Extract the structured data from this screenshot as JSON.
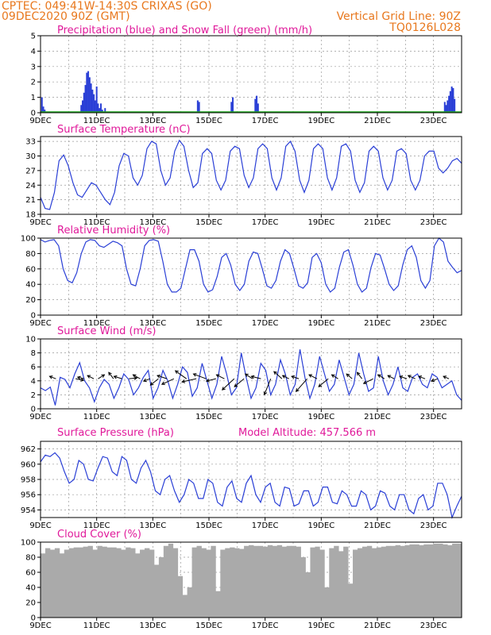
{
  "header": {
    "left1": "CPTEC:   049:41W-14:30S   CRIXAS (GO)",
    "left2": "09DEC2020 90Z (GMT)",
    "right1": "Vertical Grid Line: 90Z",
    "right2": "TQ0126L028"
  },
  "x_labels": [
    "9DEC",
    "11DEC",
    "13DEC",
    "15DEC",
    "17DEC",
    "19DEC",
    "21DEC",
    "23DEC"
  ],
  "colors": {
    "series": "#2a3fd6",
    "snow": "#22aa22",
    "cloud": "#aaaaaa",
    "header": "#e8781e",
    "title": "#e0199a"
  },
  "chart_data": [
    {
      "type": "bar",
      "title": "Precipitation (blue) and Snow Fall (green) (mm/h)",
      "ylim": [
        0,
        5
      ],
      "yticks": [
        0,
        1,
        2,
        3,
        4,
        5
      ],
      "series": [
        {
          "name": "Precipitation",
          "x": [
            0.05,
            0.1,
            0.15,
            1.45,
            1.5,
            1.55,
            1.6,
            1.65,
            1.7,
            1.75,
            1.8,
            1.85,
            1.9,
            1.95,
            2.0,
            2.05,
            2.1,
            2.15,
            2.2,
            2.3,
            5.6,
            5.65,
            6.8,
            6.85,
            7.65,
            7.7,
            7.75,
            14.4,
            14.45,
            14.5,
            14.55,
            14.6,
            14.65,
            14.7,
            14.75
          ],
          "values": [
            1.0,
            0.4,
            0.2,
            0.5,
            0.8,
            1.3,
            1.8,
            2.6,
            2.7,
            2.3,
            1.9,
            1.5,
            1.2,
            0.8,
            1.7,
            0.6,
            0.3,
            0.6,
            0.2,
            0.3,
            0.8,
            0.7,
            0.7,
            1.0,
            0.9,
            1.1,
            0.6,
            0.7,
            0.5,
            0.8,
            1.1,
            1.4,
            1.7,
            1.6,
            0.9
          ]
        },
        {
          "name": "Snow Fall",
          "x": [
            0,
            15
          ],
          "values": [
            0,
            0
          ]
        }
      ]
    },
    {
      "type": "line",
      "title": "Surface Temperature (nC)",
      "ylim": [
        18,
        34
      ],
      "yticks": [
        18,
        21,
        24,
        27,
        30,
        33
      ],
      "values": [
        21.5,
        19.2,
        19.0,
        22.5,
        29.0,
        30.2,
        28.0,
        24.5,
        22.0,
        21.5,
        23.0,
        24.5,
        24.0,
        22.5,
        21.0,
        20.0,
        22.5,
        28.0,
        30.5,
        30.0,
        25.5,
        24.0,
        26.0,
        31.5,
        33.0,
        32.5,
        27.0,
        24.0,
        25.5,
        31.0,
        33.2,
        32.0,
        27.0,
        23.5,
        24.5,
        30.5,
        31.5,
        30.5,
        25.0,
        23.0,
        25.0,
        31.0,
        32.0,
        31.5,
        26.0,
        23.5,
        25.5,
        31.5,
        32.5,
        31.5,
        25.5,
        23.0,
        25.5,
        32.0,
        33.0,
        31.0,
        25.0,
        22.5,
        25.0,
        31.5,
        32.5,
        31.5,
        25.5,
        23.0,
        25.5,
        32.0,
        32.5,
        31.0,
        25.0,
        22.5,
        24.5,
        31.0,
        32.0,
        31.0,
        25.5,
        23.0,
        25.0,
        31.0,
        31.5,
        30.5,
        25.0,
        23.0,
        25.0,
        30.0,
        31.0,
        31.0,
        27.5,
        26.5,
        27.5,
        29.0,
        29.5,
        28.5
      ]
    },
    {
      "type": "line",
      "title": "Relative Humidity (%)",
      "ylim": [
        0,
        100
      ],
      "yticks": [
        0,
        20,
        40,
        60,
        80,
        100
      ],
      "values": [
        98,
        95,
        97,
        98,
        90,
        60,
        45,
        42,
        55,
        80,
        95,
        98,
        97,
        90,
        88,
        92,
        96,
        94,
        90,
        60,
        40,
        38,
        60,
        90,
        97,
        98,
        96,
        70,
        40,
        30,
        30,
        35,
        60,
        85,
        85,
        70,
        40,
        30,
        33,
        50,
        75,
        80,
        65,
        40,
        32,
        40,
        70,
        82,
        80,
        60,
        38,
        35,
        45,
        70,
        85,
        80,
        60,
        38,
        35,
        42,
        75,
        80,
        68,
        40,
        30,
        35,
        62,
        82,
        85,
        65,
        40,
        30,
        35,
        62,
        80,
        78,
        60,
        40,
        32,
        38,
        65,
        85,
        90,
        75,
        45,
        35,
        45,
        90,
        100,
        95,
        70,
        62,
        55,
        58
      ]
    },
    {
      "type": "line",
      "title": "Surface Wind (m/s)",
      "ylim": [
        0,
        10
      ],
      "yticks": [
        0,
        2,
        4,
        6,
        8,
        10
      ],
      "values": [
        3.0,
        2.6,
        3.1,
        0.5,
        4.5,
        4.2,
        3.0,
        5.0,
        6.6,
        4.0,
        3.0,
        1.0,
        3.0,
        4.2,
        3.5,
        1.5,
        3.0,
        5.0,
        4.2,
        2.0,
        3.0,
        4.5,
        5.5,
        1.5,
        3.0,
        5.5,
        4.0,
        1.5,
        3.5,
        6.0,
        5.2,
        1.8,
        3.0,
        6.5,
        4.0,
        1.5,
        3.5,
        7.5,
        5.0,
        2.0,
        3.0,
        8.0,
        4.5,
        1.5,
        3.0,
        6.5,
        5.5,
        2.0,
        3.5,
        7.0,
        5.0,
        2.0,
        3.5,
        8.5,
        4.5,
        1.5,
        3.5,
        7.5,
        5.0,
        2.5,
        3.5,
        7.0,
        4.5,
        2.0,
        3.5,
        8.0,
        5.0,
        2.5,
        3.0,
        7.5,
        4.0,
        2.0,
        3.5,
        6.0,
        3.0,
        2.5,
        4.5,
        5.0,
        3.5,
        3.0,
        5.0,
        4.5,
        3.0,
        3.5,
        4.0,
        2.0,
        1.2
      ]
    },
    {
      "type": "line",
      "title": "Surface Pressure (hPa)",
      "annotation": "Model Altitude: 457.566  m",
      "ylim": [
        953,
        963
      ],
      "yticks": [
        954,
        956,
        958,
        960,
        962
      ],
      "values": [
        960.3,
        961.2,
        961.0,
        961.5,
        960.8,
        959.0,
        957.5,
        958.0,
        960.5,
        960.0,
        958.0,
        957.8,
        959.5,
        961.0,
        960.8,
        959.0,
        958.5,
        961.0,
        960.5,
        958.0,
        957.5,
        959.5,
        960.5,
        959.0,
        956.5,
        956.0,
        958.0,
        958.5,
        956.5,
        955.0,
        956.0,
        958.0,
        957.5,
        955.5,
        955.5,
        958.0,
        957.5,
        955.0,
        954.5,
        957.0,
        957.8,
        955.5,
        955.0,
        957.5,
        958.5,
        956.0,
        955.0,
        957.0,
        957.5,
        955.0,
        954.5,
        957.0,
        956.8,
        954.5,
        954.8,
        956.5,
        956.5,
        954.5,
        955.0,
        957.0,
        957.0,
        955.0,
        954.8,
        956.5,
        956.0,
        954.5,
        954.5,
        956.5,
        956.0,
        954.0,
        954.5,
        956.5,
        956.2,
        954.5,
        954.0,
        956.0,
        956.0,
        954.0,
        953.5,
        955.5,
        956.0,
        954.0,
        954.5,
        957.5,
        957.5,
        956.0,
        953.0,
        954.5,
        955.8
      ]
    },
    {
      "type": "area",
      "title": "Cloud Cover (%)",
      "ylim": [
        0,
        100
      ],
      "yticks": [
        0,
        20,
        40,
        60,
        80,
        100
      ],
      "values": [
        85,
        92,
        90,
        92,
        85,
        90,
        92,
        93,
        93,
        94,
        95,
        90,
        95,
        94,
        93,
        93,
        92,
        90,
        93,
        92,
        85,
        90,
        92,
        90,
        70,
        80,
        95,
        98,
        92,
        55,
        30,
        40,
        93,
        95,
        92,
        90,
        95,
        35,
        90,
        92,
        93,
        92,
        91,
        95,
        96,
        95,
        95,
        94,
        96,
        95,
        96,
        94,
        95,
        95,
        94,
        80,
        60,
        93,
        94,
        90,
        40,
        92,
        95,
        88,
        94,
        45,
        90,
        92,
        94,
        95,
        92,
        93,
        94,
        95,
        95,
        96,
        95,
        96,
        97,
        97,
        96,
        97,
        97,
        98,
        98,
        97,
        96,
        98,
        98
      ]
    }
  ],
  "wind_arrows": [
    {
      "day": 0.55,
      "dx": -8,
      "dy": -3
    },
    {
      "day": 1.25,
      "dx": 10,
      "dy": 2
    },
    {
      "day": 1.55,
      "dx": -8,
      "dy": -2
    },
    {
      "day": 1.9,
      "dx": -8,
      "dy": -4
    },
    {
      "day": 2.05,
      "dx": 8,
      "dy": -5
    },
    {
      "day": 2.6,
      "dx": -6,
      "dy": -8
    },
    {
      "day": 2.9,
      "dx": -10,
      "dy": -3
    },
    {
      "day": 3.15,
      "dx": 10,
      "dy": -1
    },
    {
      "day": 3.55,
      "dx": -9,
      "dy": -5
    },
    {
      "day": 3.9,
      "dx": -8,
      "dy": 3
    },
    {
      "day": 4.2,
      "dx": -10,
      "dy": 8
    },
    {
      "day": 4.5,
      "dx": -12,
      "dy": -4
    },
    {
      "day": 4.75,
      "dx": -15,
      "dy": 7
    },
    {
      "day": 5.2,
      "dx": -14,
      "dy": -10
    },
    {
      "day": 5.55,
      "dx": -18,
      "dy": 4
    },
    {
      "day": 5.9,
      "dx": -16,
      "dy": -6
    },
    {
      "day": 6.25,
      "dx": -12,
      "dy": 3
    },
    {
      "day": 6.55,
      "dx": -10,
      "dy": -5
    },
    {
      "day": 6.9,
      "dx": -15,
      "dy": 14
    },
    {
      "day": 7.25,
      "dx": -12,
      "dy": 10
    },
    {
      "day": 7.55,
      "dx": -9,
      "dy": -6
    },
    {
      "day": 7.85,
      "dx": -12,
      "dy": -3
    },
    {
      "day": 8.2,
      "dx": -8,
      "dy": 20
    },
    {
      "day": 8.6,
      "dx": -10,
      "dy": -9
    },
    {
      "day": 8.85,
      "dx": -8,
      "dy": -4
    },
    {
      "day": 9.2,
      "dx": -9,
      "dy": -3
    },
    {
      "day": 9.5,
      "dx": -14,
      "dy": 16
    },
    {
      "day": 9.85,
      "dx": -10,
      "dy": -5
    },
    {
      "day": 10.25,
      "dx": -12,
      "dy": 10
    },
    {
      "day": 10.6,
      "dx": -8,
      "dy": -5
    },
    {
      "day": 11.1,
      "dx": -7,
      "dy": -6
    },
    {
      "day": 11.45,
      "dx": -6,
      "dy": -8
    },
    {
      "day": 11.85,
      "dx": -12,
      "dy": 6
    },
    {
      "day": 12.25,
      "dx": -8,
      "dy": -5
    },
    {
      "day": 12.6,
      "dx": -8,
      "dy": -4
    },
    {
      "day": 13.05,
      "dx": -9,
      "dy": -3
    },
    {
      "day": 13.35,
      "dx": -9,
      "dy": -4
    },
    {
      "day": 13.7,
      "dx": -8,
      "dy": -3
    },
    {
      "day": 14.15,
      "dx": -8,
      "dy": 3
    },
    {
      "day": 14.55,
      "dx": -7,
      "dy": -3
    }
  ]
}
